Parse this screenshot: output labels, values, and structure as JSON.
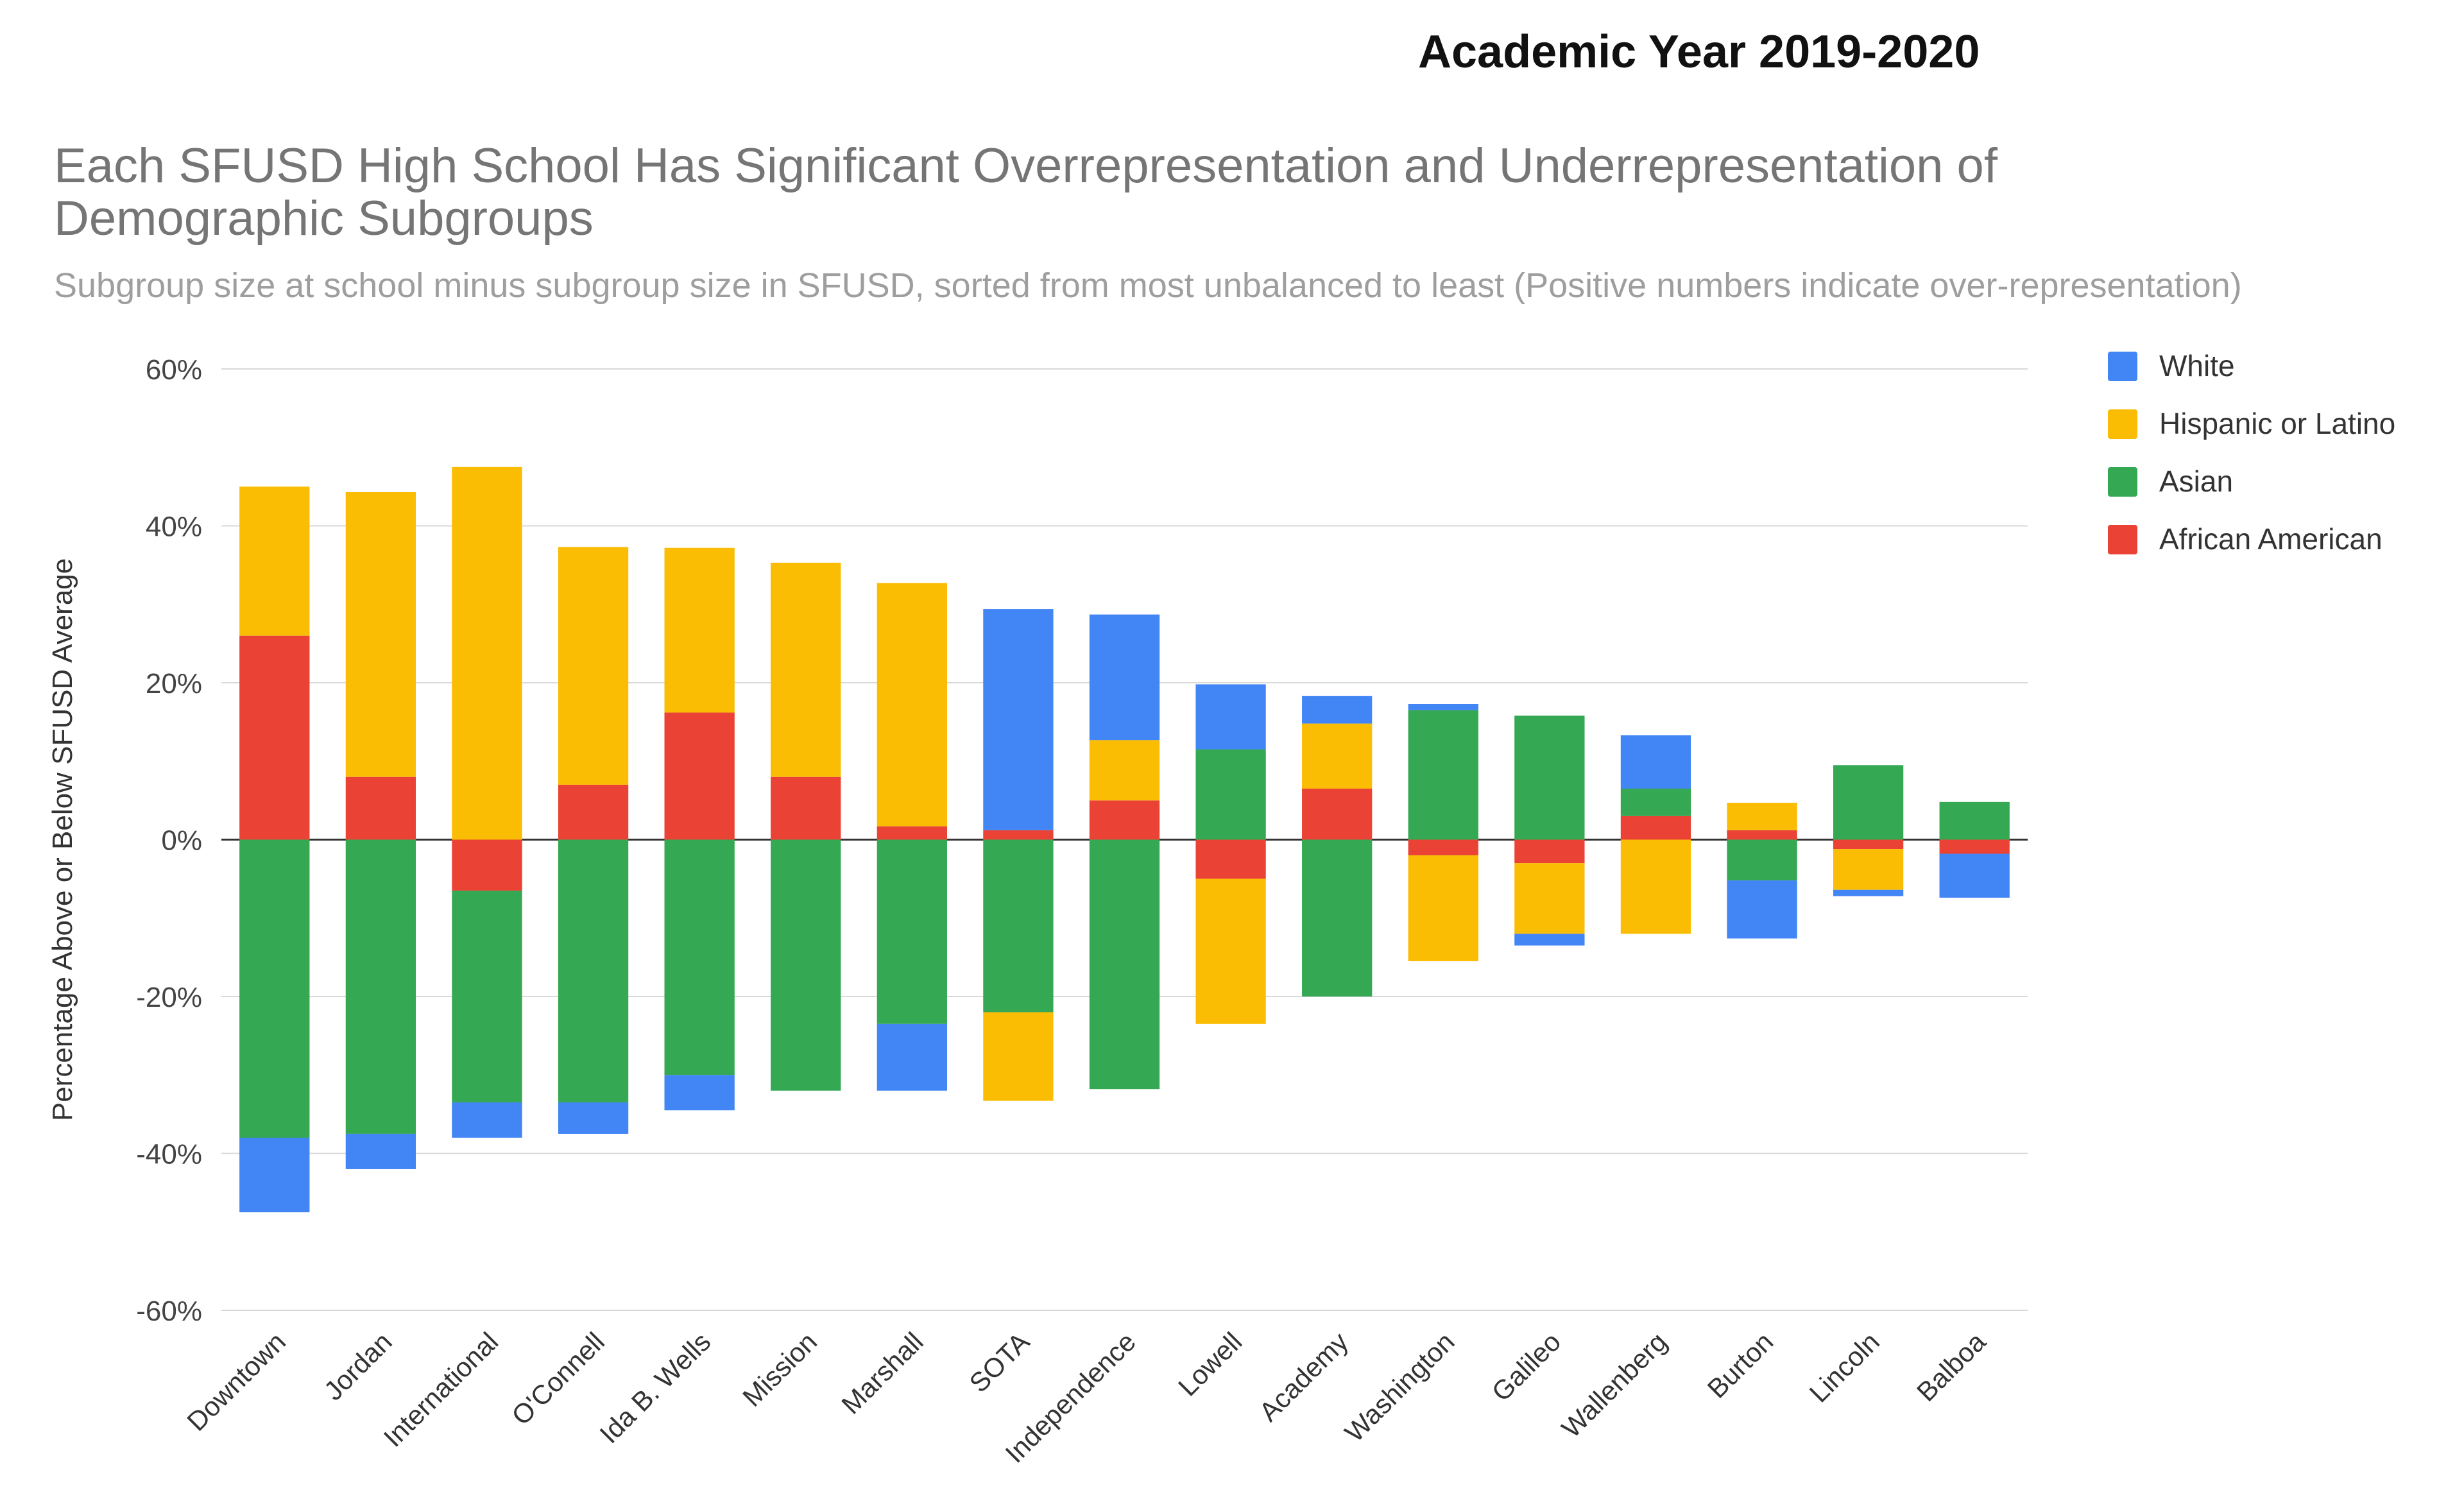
{
  "header": {
    "academic_year": "Academic Year 2019-2020"
  },
  "chart_data": {
    "type": "bar",
    "stacked": true,
    "title": "Each SFUSD High School Has Significant Overrepresentation and Underrepresentation of Demographic Subgroups",
    "subtitle": "Subgroup size at school minus subgroup size in SFUSD, sorted from most unbalanced to least (Positive numbers indicate over-representation)",
    "ylabel": "Percentage Above or Below SFUSD Average",
    "xlabel": "",
    "ylim": [
      -60,
      60
    ],
    "yticks": [
      60,
      40,
      20,
      0,
      -20,
      -40,
      -60
    ],
    "ytick_labels": [
      "60%",
      "40%",
      "20%",
      "0%",
      "-20%",
      "-40%",
      "-60%"
    ],
    "grid": true,
    "legend_position": "right",
    "categories": [
      "Downtown",
      "Jordan",
      "International",
      "O'Connell",
      "Ida B. Wells",
      "Mission",
      "Marshall",
      "SOTA",
      "Independence",
      "Lowell",
      "Academy",
      "Washington",
      "Galileo",
      "Wallenberg",
      "Burton",
      "Lincoln",
      "Balboa"
    ],
    "series": [
      {
        "name": "African American",
        "color": "#ea4335",
        "values": [
          26,
          8,
          -6.5,
          7,
          16.2,
          8,
          1.7,
          1.2,
          5,
          -5,
          6.5,
          -2,
          -3,
          3,
          1.2,
          -1.2,
          -1.8
        ]
      },
      {
        "name": "Asian",
        "color": "#34a853",
        "values": [
          -38,
          -37.5,
          -27,
          -33.5,
          -30,
          -32,
          -23.5,
          -22,
          -31.8,
          11.5,
          -20,
          16.5,
          15.8,
          3.5,
          -5.2,
          9.5,
          4.8
        ]
      },
      {
        "name": "Hispanic or Latino",
        "color": "#fbbc04",
        "values": [
          19,
          36.3,
          47.5,
          30.3,
          21,
          27.3,
          31,
          -11.3,
          7.7,
          -18.5,
          8.3,
          -13.5,
          -9,
          -12,
          3.5,
          -5.2,
          0
        ]
      },
      {
        "name": "White",
        "color": "#4285f4",
        "values": [
          -9.5,
          -4.5,
          -4.5,
          -4,
          -4.5,
          0,
          -8.5,
          28.2,
          16,
          8.3,
          3.5,
          0.8,
          -1.5,
          6.8,
          -7.4,
          -0.8,
          -5.6
        ]
      }
    ],
    "legend_order": [
      "White",
      "Hispanic or Latino",
      "Asian",
      "African American"
    ]
  }
}
